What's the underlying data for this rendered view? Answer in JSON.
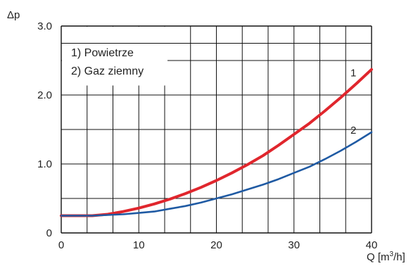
{
  "chart_data": {
    "type": "line",
    "ylabel": "Δp",
    "xlabel_main": "Q [m",
    "xlabel_sup": "3",
    "xlabel_tail": "/h]",
    "xlim": [
      0,
      40
    ],
    "ylim": [
      0,
      3.0
    ],
    "x_ticks": [
      "0",
      "10",
      "20",
      "30",
      "40"
    ],
    "y_ticks": [
      "0",
      "1.0",
      "2.0",
      "3.0"
    ],
    "grid": true,
    "legend": [
      "1) Powietrze",
      "2) Gaz ziemny"
    ],
    "legend_placement": "top-left",
    "series": [
      {
        "label": "1",
        "color": "#e0262d",
        "x": [
          0,
          2,
          4,
          6,
          8,
          10,
          12,
          14,
          16,
          18,
          20,
          22,
          24,
          26,
          28,
          30,
          32,
          34,
          36,
          38,
          40
        ],
        "y": [
          0.25,
          0.25,
          0.25,
          0.27,
          0.31,
          0.36,
          0.42,
          0.49,
          0.57,
          0.66,
          0.76,
          0.87,
          0.99,
          1.12,
          1.27,
          1.43,
          1.59,
          1.77,
          1.96,
          2.16,
          2.37
        ]
      },
      {
        "label": "2",
        "color": "#1f5aa3",
        "x": [
          0,
          2,
          4,
          6,
          8,
          10,
          12,
          14,
          16,
          18,
          20,
          22,
          24,
          26,
          28,
          30,
          32,
          34,
          36,
          38,
          40
        ],
        "y": [
          0.25,
          0.25,
          0.25,
          0.26,
          0.27,
          0.29,
          0.31,
          0.35,
          0.39,
          0.44,
          0.5,
          0.56,
          0.63,
          0.7,
          0.78,
          0.87,
          0.96,
          1.07,
          1.19,
          1.32,
          1.46
        ]
      }
    ]
  }
}
